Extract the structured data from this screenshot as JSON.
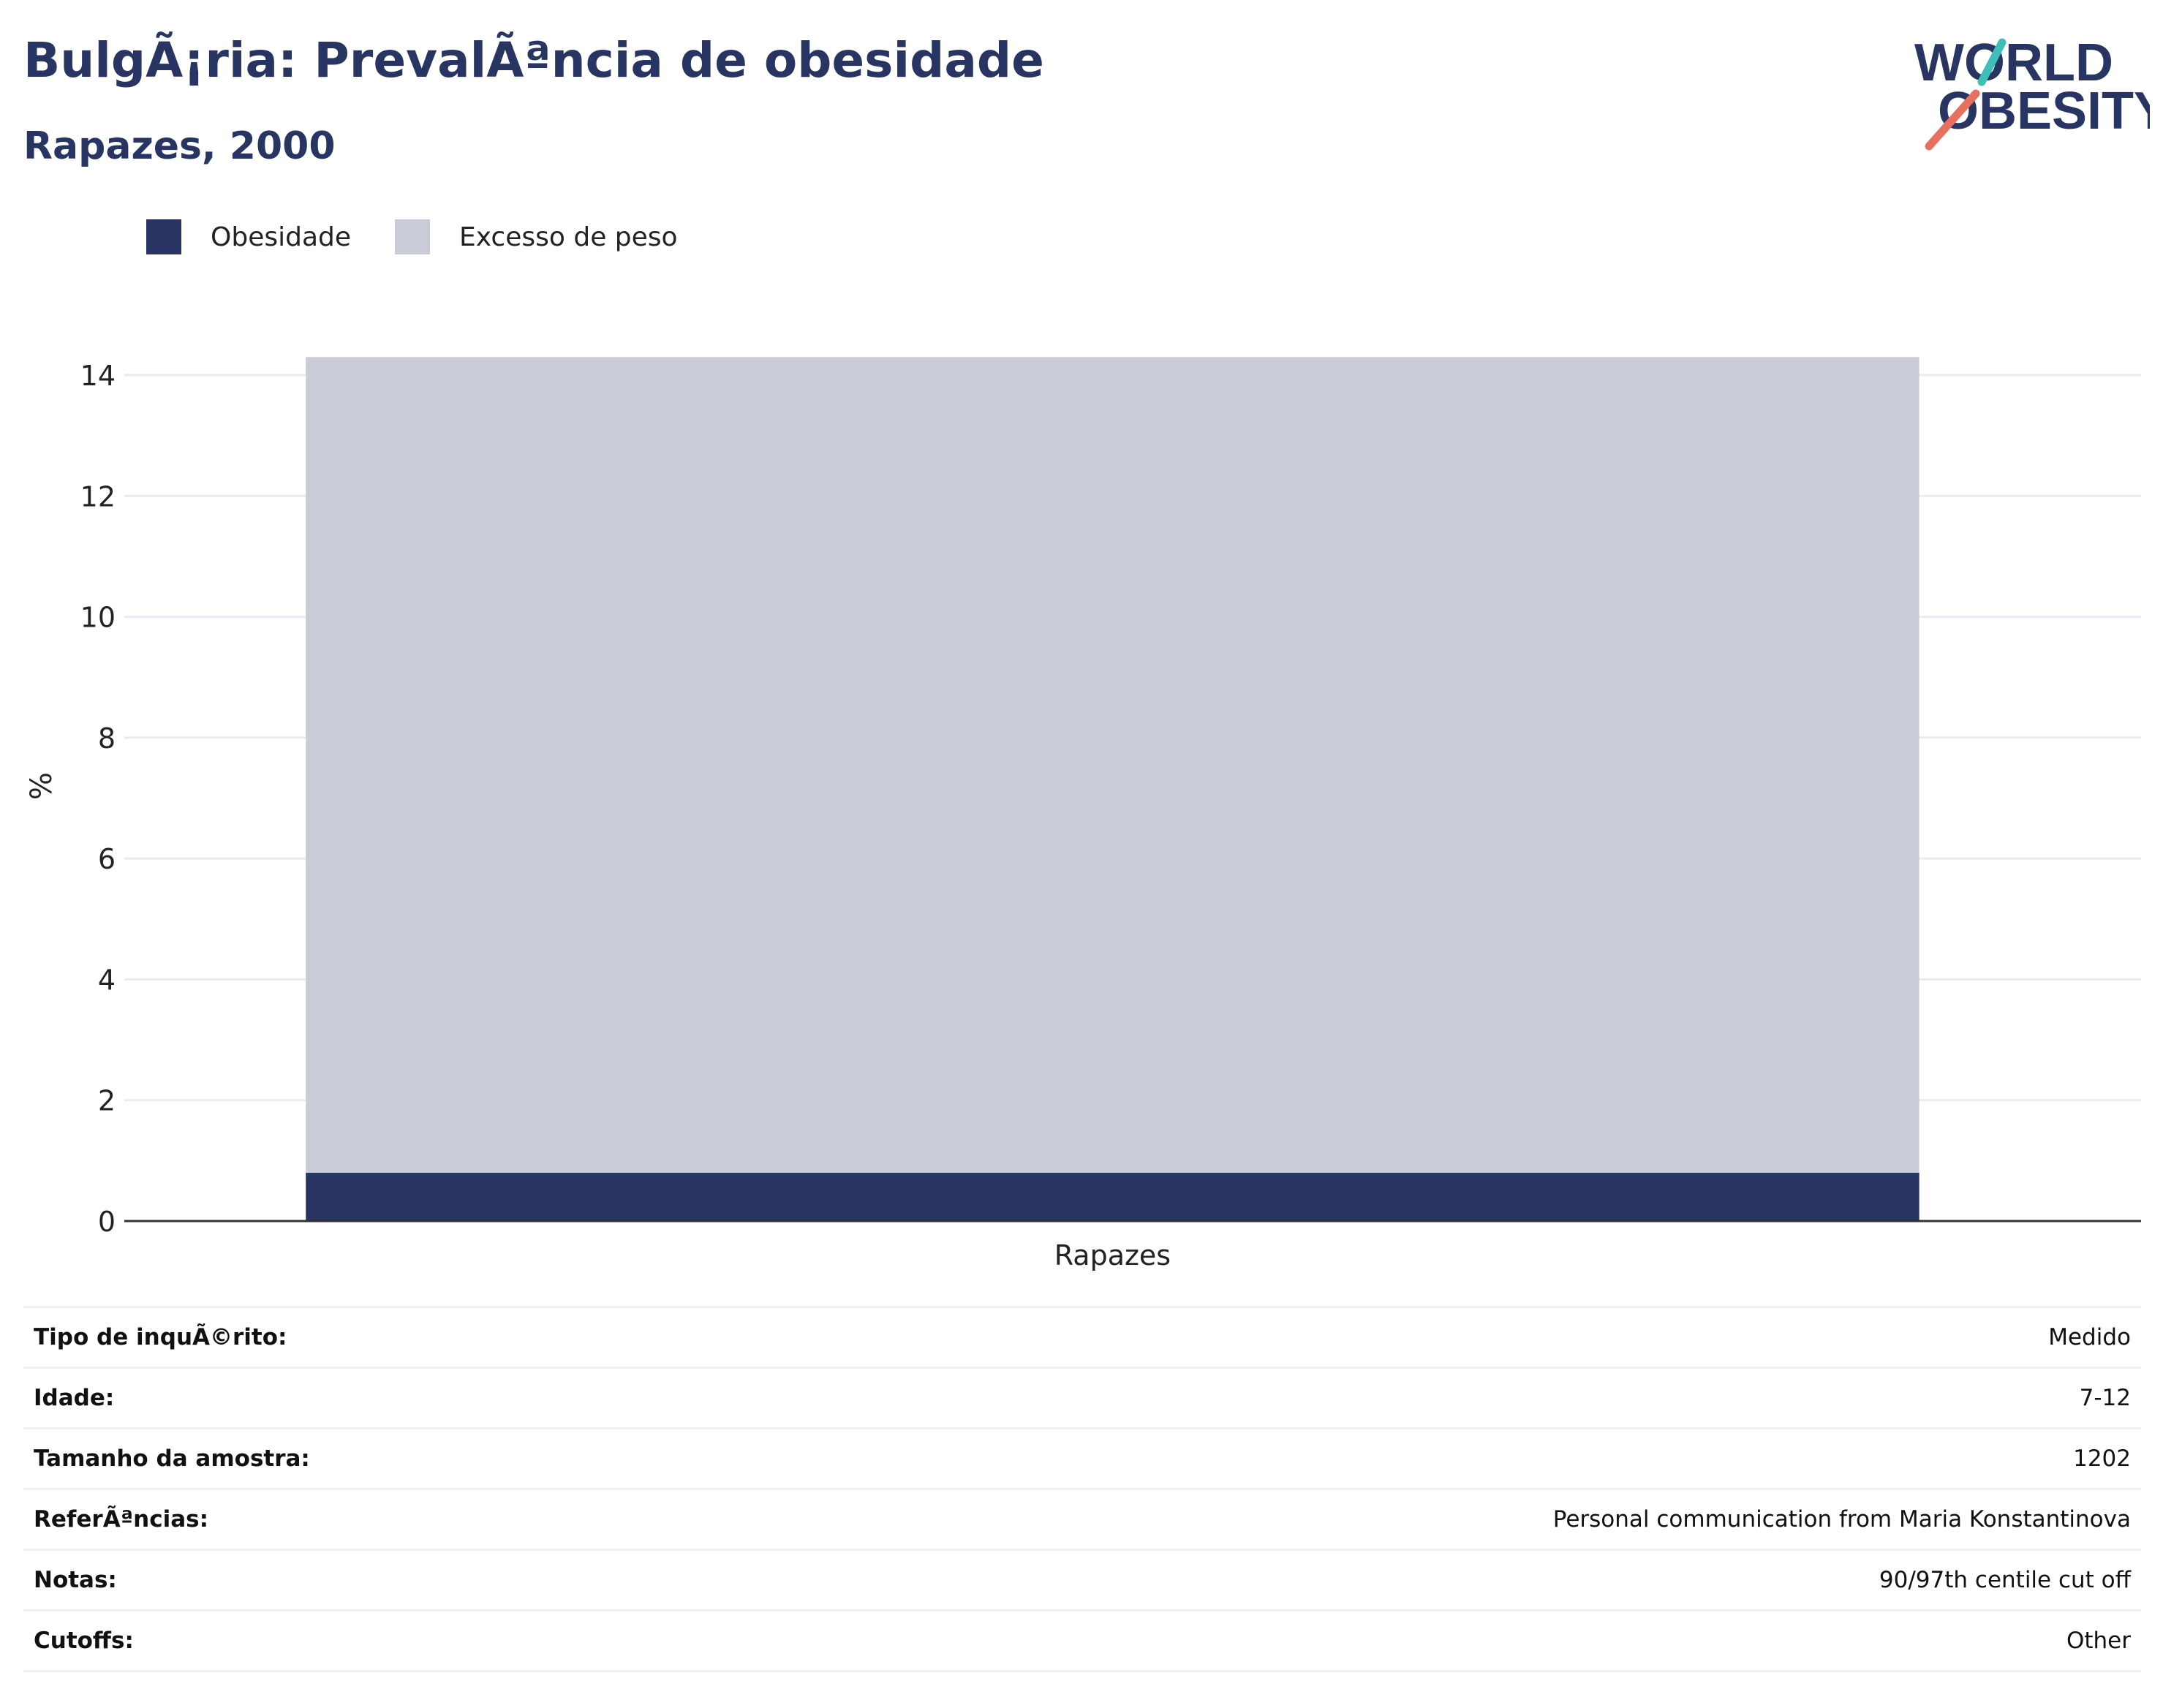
{
  "header": {
    "title": "BulgÃ¡ria: PrevalÃªncia de obesidade",
    "subtitle": "Rapazes, 2000"
  },
  "logo": {
    "line1": "WORLD",
    "line2": "OBESITY",
    "colors": {
      "text": "#283562",
      "slash_top": "#3dbfb8",
      "slash_bottom": "#e8705f"
    }
  },
  "legend": [
    {
      "label": "Obesidade",
      "color": "#283562"
    },
    {
      "label": "Excesso de peso",
      "color": "#c9ccd7"
    }
  ],
  "chart_data": {
    "type": "bar",
    "stacked": true,
    "categories": [
      "Rapazes"
    ],
    "series": [
      {
        "name": "Obesidade",
        "values": [
          0.8
        ],
        "color": "#283562"
      },
      {
        "name": "Excesso de peso",
        "values": [
          13.5
        ],
        "color": "#c9ccd7"
      }
    ],
    "ylabel": "%",
    "ylim": [
      0,
      14.4
    ],
    "yticks": [
      0,
      2,
      4,
      6,
      8,
      10,
      12,
      14
    ],
    "grid": true,
    "legend_position": "top-left"
  },
  "info": [
    {
      "label": "Tipo de inquÃ©rito:",
      "value": "Medido"
    },
    {
      "label": "Idade:",
      "value": "7-12"
    },
    {
      "label": "Tamanho da amostra:",
      "value": "1202"
    },
    {
      "label": "ReferÃªncias:",
      "value": "Personal communication from Maria Konstantinova"
    },
    {
      "label": "Notas:",
      "value": "90/97th centile cut off"
    },
    {
      "label": "Cutoffs:",
      "value": "Other"
    }
  ]
}
